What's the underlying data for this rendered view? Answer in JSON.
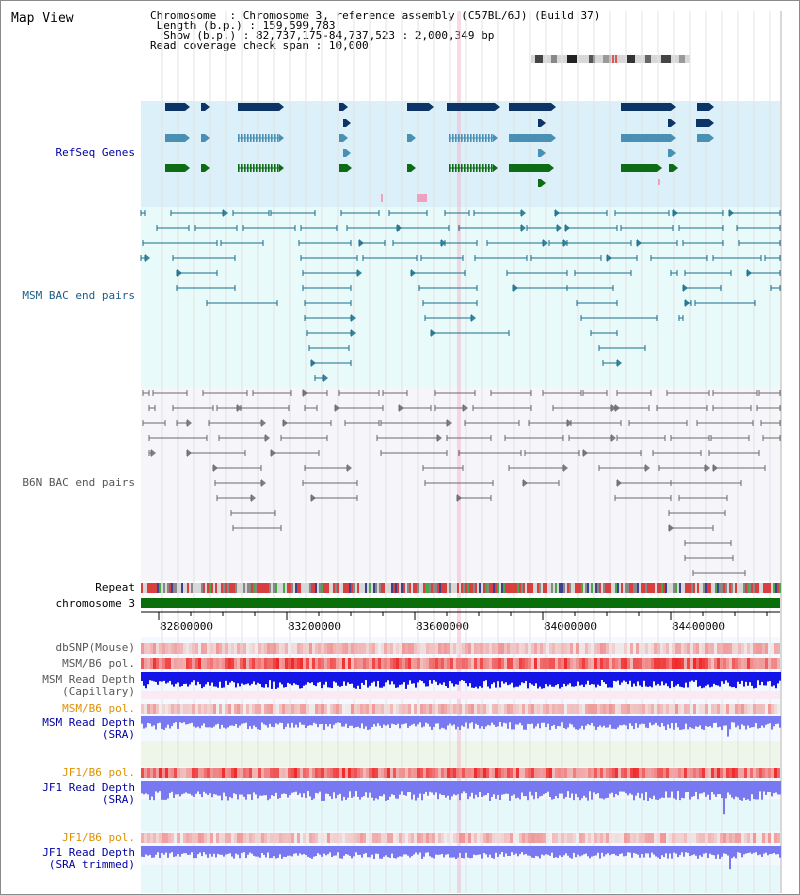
{
  "title": "Map View",
  "info": {
    "chromosome_key": "Chromosome",
    "chromosome_val": "Chromosome 3, reference assembly (C57BL/6J) (Build 37)",
    "length_key": "Length (b.p.)",
    "length_val": "159,599,783",
    "show_key": "Show (b.p.)",
    "show_val": "82,737,175-84,737,523 : 2,000,349 bp",
    "span_key": "Read coverage check span",
    "span_val": "10,000"
  },
  "tracks": {
    "refseq": "RefSeq Genes",
    "msm_bac": "MSM BAC end pairs",
    "b6n_bac": "B6N BAC end pairs",
    "repeat": "Repeat",
    "chromosome": "chromosome 3",
    "dbsnp": "dbSNP(Mouse)",
    "msm_b6_pol": "MSM/B6 pol.",
    "msm_depth_cap": "MSM Read Depth\n(Capillary)",
    "msm_b6_pol2": "MSM/B6 pol.",
    "msm_depth_sra": "MSM Read Depth\n(SRA)",
    "jf1_b6_pol": "JF1/B6 pol.",
    "jf1_depth_sra": "JF1 Read Depth\n(SRA)",
    "jf1_b6_pol2": "JF1/B6 pol.",
    "jf1_depth_trim": "JF1 Read Depth\n(SRA trimmed)"
  },
  "axis_ticks": [
    "82800000",
    "83200000",
    "83600000",
    "84000000",
    "84400000"
  ],
  "colors": {
    "refseq_bg": "#dcf0fa",
    "msm_bac_bg": "#e8fafa",
    "b6n_bac_bg": "#f6f6fa",
    "gene_dark": "#0c3466",
    "gene_mid": "#4a8fb4",
    "gene_green": "#0e6b16",
    "msm_bac": "#1a6e8c",
    "b6n_bac": "#6a6a6a",
    "chromosome_bar": "#0a6e0a",
    "depth_blue": "#1414e6",
    "depth_light": "#7878f0",
    "orange_label": "#e09000",
    "navy_label": "#0000a0"
  }
}
